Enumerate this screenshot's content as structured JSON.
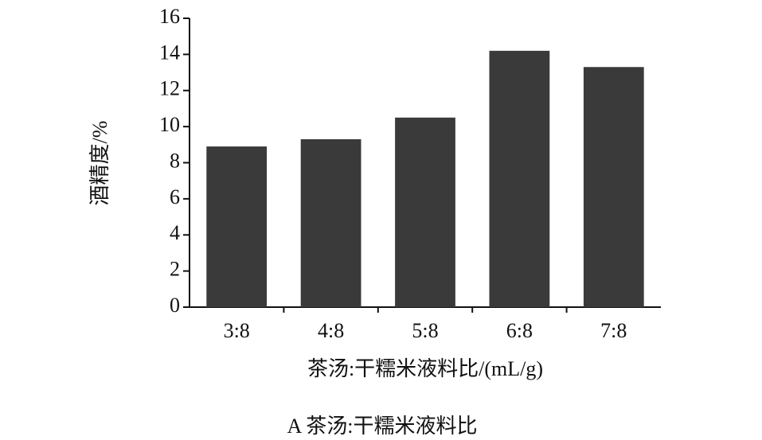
{
  "chart_data": {
    "type": "bar",
    "y_label": "酒精度/%",
    "x_label": "茶汤:干糯米液料比/(mL/g)",
    "caption": "A 茶汤:干糯米液料比",
    "categories": [
      "3:8",
      "4:8",
      "5:8",
      "6:8",
      "7:8"
    ],
    "values": [
      8.9,
      9.3,
      10.5,
      14.2,
      13.3
    ],
    "color": "#3a3a3a",
    "ylim": [
      0,
      16
    ],
    "yticks": [
      0,
      2,
      4,
      6,
      8,
      10,
      12,
      14,
      16
    ],
    "grid": false
  }
}
